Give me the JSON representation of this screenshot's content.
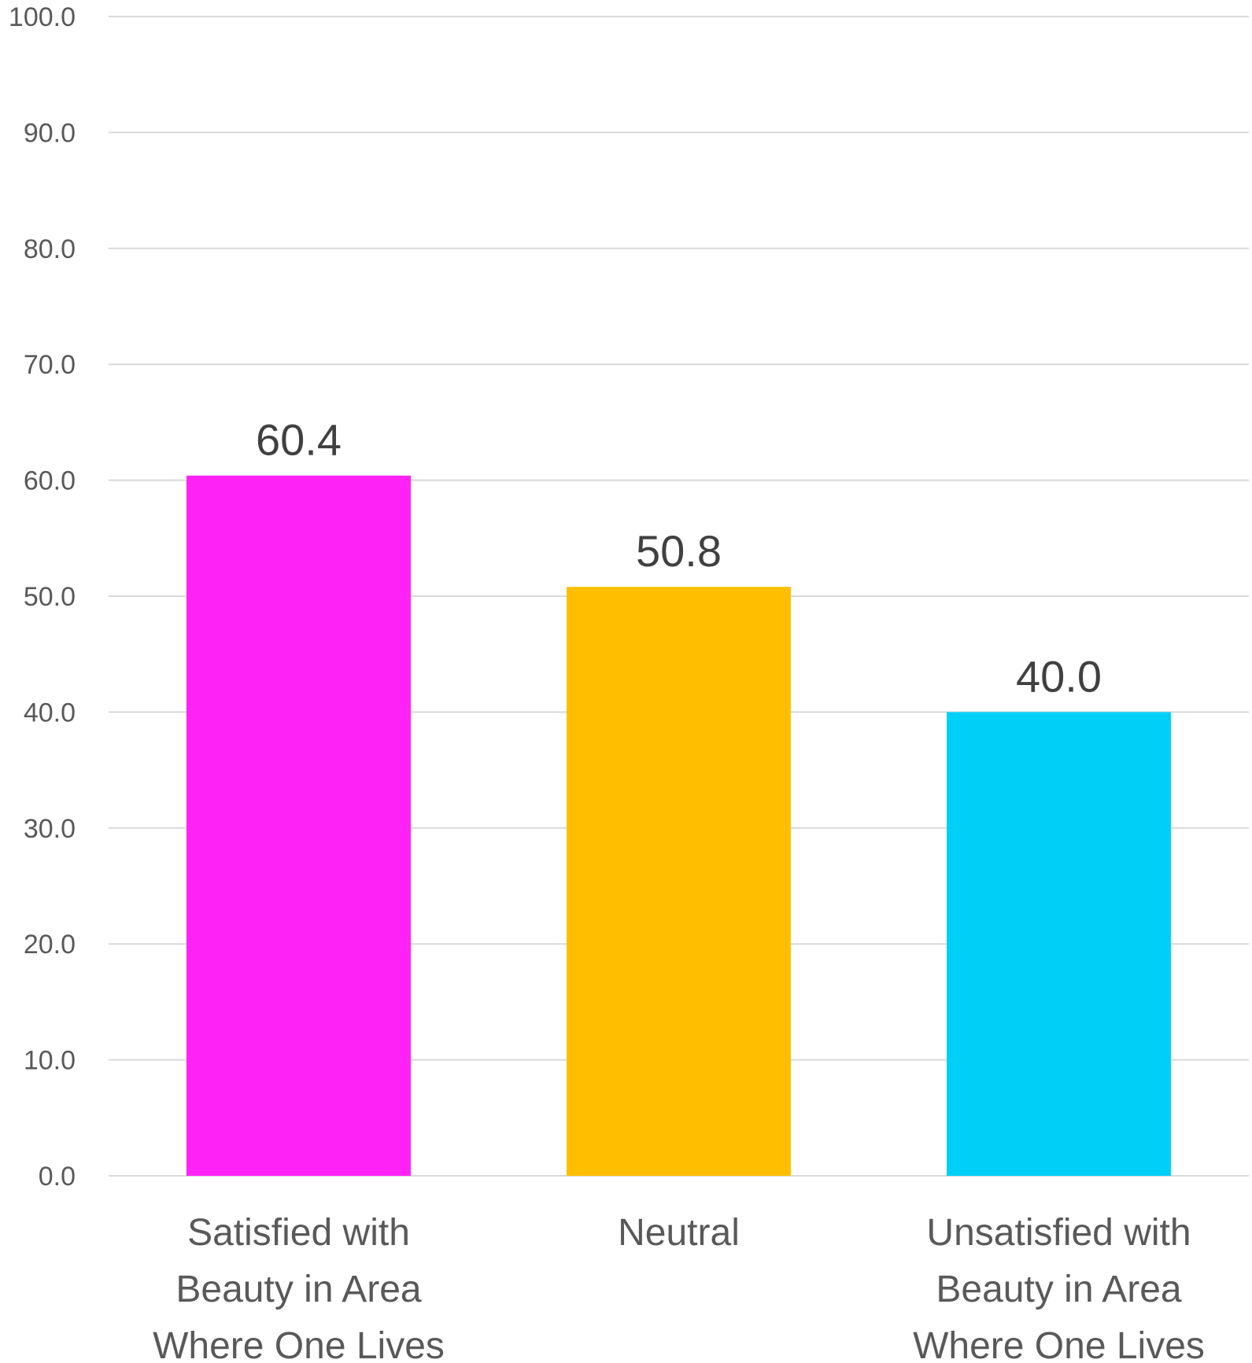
{
  "chart_data": {
    "type": "bar",
    "title": "",
    "xlabel": "",
    "ylabel": "",
    "ylim": [
      0,
      100
    ],
    "ytick_step": 10,
    "yticks": [
      "0.0",
      "10.0",
      "20.0",
      "30.0",
      "40.0",
      "50.0",
      "60.0",
      "70.0",
      "80.0",
      "90.0",
      "100.0"
    ],
    "grid": true,
    "categories": [
      [
        "Satisfied with",
        "Beauty in Area",
        "Where One Lives"
      ],
      [
        "Neutral"
      ],
      [
        "Unsatisfied with",
        "Beauty in Area",
        "Where One Lives"
      ]
    ],
    "values": [
      60.4,
      50.8,
      40.0
    ],
    "data_labels": [
      "60.4",
      "50.8",
      "40.0"
    ],
    "colors": [
      "#ff22f6",
      "#ffbf00",
      "#00cff7"
    ]
  }
}
